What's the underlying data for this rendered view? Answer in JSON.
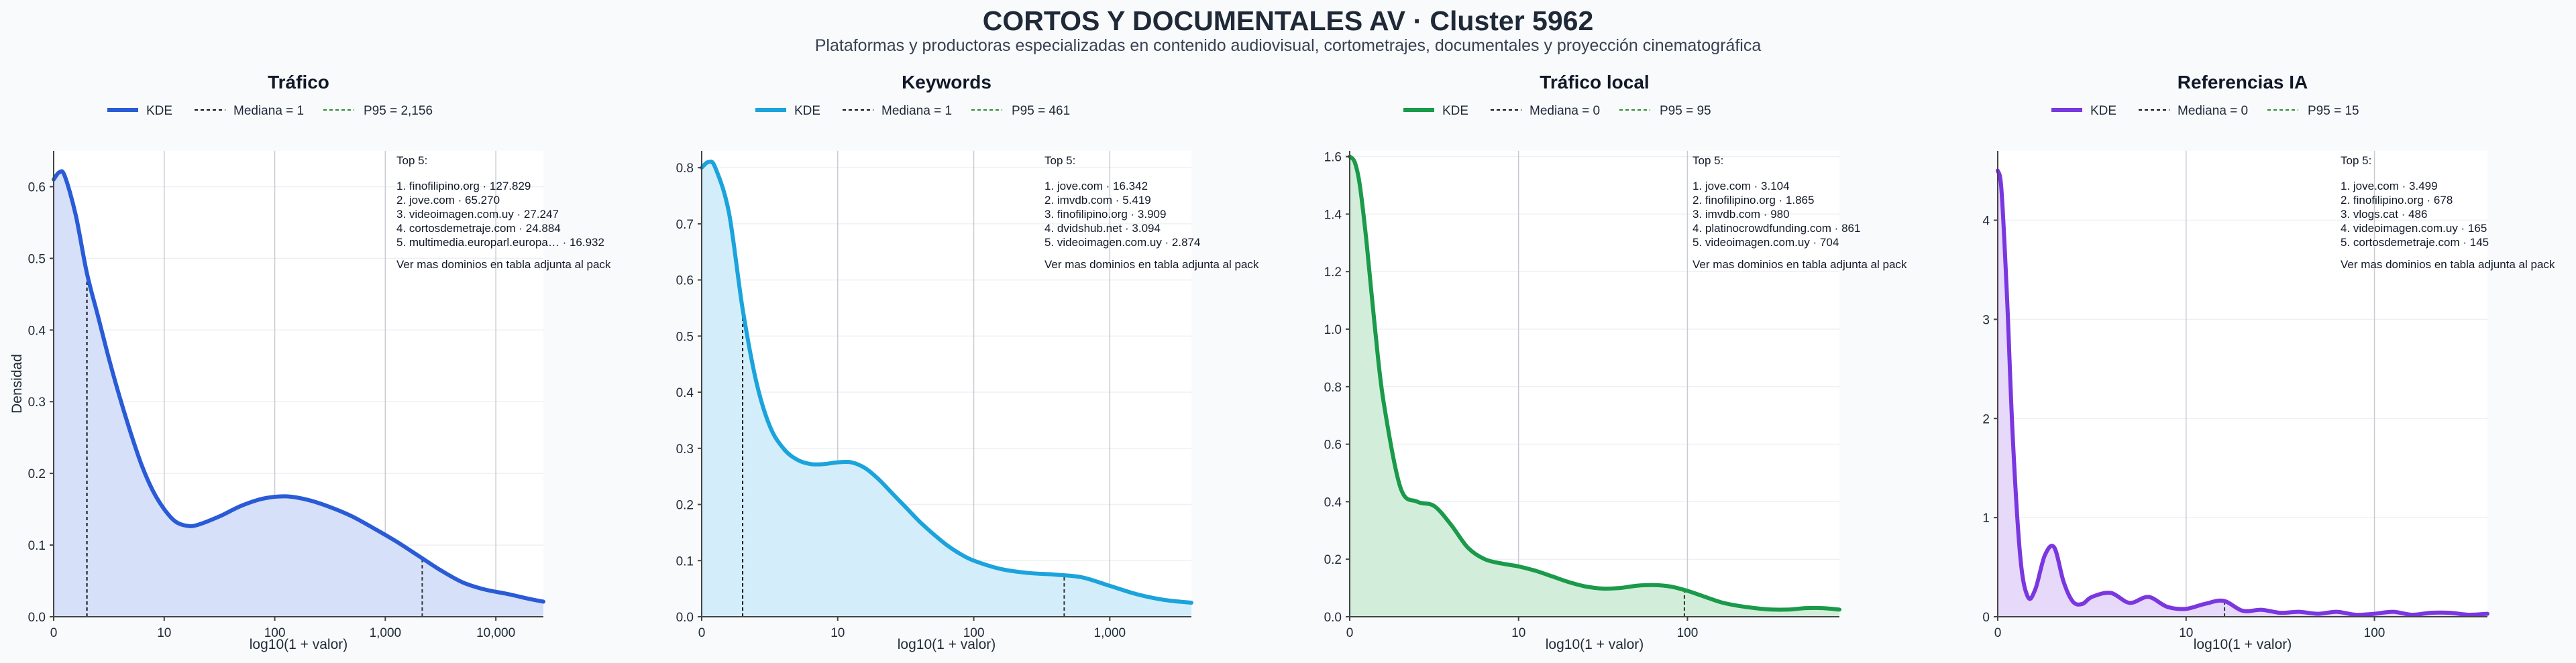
{
  "title": "CORTOS Y DOCUMENTALES AV · Cluster 5962",
  "subtitle": "Plataformas y productoras especializadas en contenido audiovisual, cortometrajes, documentales y proyección cinematográfica",
  "chart_data": [
    {
      "type": "area",
      "title": "Tráfico",
      "color": "#2a5bd7",
      "fill": "#d6e0f8",
      "xlabel": "log10(1 + valor)",
      "ylabel": "Densidad",
      "xscale": "log10(1+x)",
      "xlim": [
        0,
        4.43
      ],
      "ylim": [
        0,
        0.65
      ],
      "x_ticks": [
        {
          "v": 0,
          "label": "0"
        },
        {
          "v": 1,
          "label": "10"
        },
        {
          "v": 2,
          "label": "100"
        },
        {
          "v": 3,
          "label": "1,000"
        },
        {
          "v": 4,
          "label": "10,000"
        }
      ],
      "y_ticks": [
        {
          "v": 0,
          "label": "0.0"
        },
        {
          "v": 0.1,
          "label": "0.1"
        },
        {
          "v": 0.2,
          "label": "0.2"
        },
        {
          "v": 0.3,
          "label": "0.3"
        },
        {
          "v": 0.4,
          "label": "0.4"
        },
        {
          "v": 0.5,
          "label": "0.5"
        },
        {
          "v": 0.6,
          "label": "0.6"
        }
      ],
      "legend": {
        "kde": "KDE",
        "median": "Mediana = 1",
        "p95": "P95 = 2,156"
      },
      "median_x": 0.301,
      "p95_x": 3.334,
      "series": [
        {
          "name": "KDE",
          "x": [
            0,
            0.05,
            0.1,
            0.2,
            0.3,
            0.4,
            0.5,
            0.6,
            0.7,
            0.8,
            0.9,
            1.0,
            1.1,
            1.2,
            1.3,
            1.5,
            1.7,
            1.9,
            2.1,
            2.3,
            2.5,
            2.7,
            2.9,
            3.1,
            3.3,
            3.5,
            3.7,
            3.9,
            4.1,
            4.3,
            4.43
          ],
          "y": [
            0.61,
            0.62,
            0.615,
            0.56,
            0.48,
            0.42,
            0.36,
            0.305,
            0.255,
            0.21,
            0.175,
            0.15,
            0.133,
            0.127,
            0.128,
            0.14,
            0.155,
            0.165,
            0.168,
            0.163,
            0.153,
            0.14,
            0.123,
            0.105,
            0.085,
            0.065,
            0.048,
            0.038,
            0.032,
            0.025,
            0.021
          ]
        }
      ],
      "top5": [
        "Top 5:",
        "1. finofilipino.org · 127.829",
        "2. jove.com · 65.270",
        "3. videoimagen.com.uy · 27.247",
        "4. cortosdemetraje.com · 24.884",
        "5. multimedia.europarl.europa… · 16.932",
        "Ver mas dominios en tabla adjunta al pack"
      ]
    },
    {
      "type": "area",
      "title": "Keywords",
      "color": "#1ba3dc",
      "fill": "#d3eefa",
      "xlabel": "log10(1 + valor)",
      "xscale": "log10(1+x)",
      "xlim": [
        0,
        3.6
      ],
      "ylim": [
        0,
        0.83
      ],
      "x_ticks": [
        {
          "v": 0,
          "label": "0"
        },
        {
          "v": 1,
          "label": "10"
        },
        {
          "v": 2,
          "label": "100"
        },
        {
          "v": 3,
          "label": "1,000"
        }
      ],
      "y_ticks": [
        {
          "v": 0,
          "label": "0.0"
        },
        {
          "v": 0.1,
          "label": "0.1"
        },
        {
          "v": 0.2,
          "label": "0.2"
        },
        {
          "v": 0.3,
          "label": "0.3"
        },
        {
          "v": 0.4,
          "label": "0.4"
        },
        {
          "v": 0.5,
          "label": "0.5"
        },
        {
          "v": 0.6,
          "label": "0.6"
        },
        {
          "v": 0.7,
          "label": "0.7"
        },
        {
          "v": 0.8,
          "label": "0.8"
        }
      ],
      "legend": {
        "kde": "KDE",
        "median": "Mediana = 1",
        "p95": "P95 = 461"
      },
      "median_x": 0.301,
      "p95_x": 2.665,
      "series": [
        {
          "name": "KDE",
          "x": [
            0,
            0.05,
            0.1,
            0.2,
            0.3,
            0.4,
            0.5,
            0.6,
            0.7,
            0.8,
            0.9,
            1.0,
            1.1,
            1.2,
            1.3,
            1.4,
            1.5,
            1.6,
            1.7,
            1.8,
            1.9,
            2.0,
            2.2,
            2.4,
            2.6,
            2.8,
            3.0,
            3.2,
            3.4,
            3.6
          ],
          "y": [
            0.8,
            0.81,
            0.8,
            0.72,
            0.55,
            0.42,
            0.34,
            0.3,
            0.28,
            0.272,
            0.272,
            0.275,
            0.275,
            0.265,
            0.245,
            0.22,
            0.195,
            0.17,
            0.148,
            0.128,
            0.112,
            0.1,
            0.085,
            0.078,
            0.075,
            0.07,
            0.055,
            0.04,
            0.03,
            0.025
          ]
        }
      ],
      "top5": [
        "Top 5:",
        "1. jove.com · 16.342",
        "2. imvdb.com · 5.419",
        "3. finofilipino.org · 3.909",
        "4. dvidshub.net · 3.094",
        "5. videoimagen.com.uy · 2.874",
        "Ver mas dominios en tabla adjunta al pack"
      ]
    },
    {
      "type": "area",
      "title": "Tráfico local",
      "color": "#1a9a4a",
      "fill": "#d2eedb",
      "xlabel": "log10(1 + valor)",
      "xscale": "log10(1+x)",
      "xlim": [
        0,
        2.9
      ],
      "ylim": [
        0,
        1.62
      ],
      "x_ticks": [
        {
          "v": 0,
          "label": "0"
        },
        {
          "v": 1,
          "label": "10"
        },
        {
          "v": 2,
          "label": "100"
        },
        {
          "v": 3,
          "label": "1,000"
        }
      ],
      "y_ticks": [
        {
          "v": 0,
          "label": "0.0"
        },
        {
          "v": 0.2,
          "label": "0.2"
        },
        {
          "v": 0.4,
          "label": "0.4"
        },
        {
          "v": 0.6,
          "label": "0.6"
        },
        {
          "v": 0.8,
          "label": "0.8"
        },
        {
          "v": 1.0,
          "label": "1.0"
        },
        {
          "v": 1.2,
          "label": "1.2"
        },
        {
          "v": 1.4,
          "label": "1.4"
        },
        {
          "v": 1.6,
          "label": "1.6"
        }
      ],
      "legend": {
        "kde": "KDE",
        "median": "Mediana = 0",
        "p95": "P95 = 95"
      },
      "median_x": 0,
      "p95_x": 1.982,
      "series": [
        {
          "name": "KDE",
          "x": [
            0,
            0.03,
            0.06,
            0.1,
            0.15,
            0.2,
            0.3,
            0.4,
            0.5,
            0.6,
            0.7,
            0.8,
            0.9,
            1.0,
            1.1,
            1.2,
            1.3,
            1.4,
            1.5,
            1.6,
            1.7,
            1.8,
            1.9,
            2.0,
            2.1,
            2.2,
            2.3,
            2.4,
            2.5,
            2.6,
            2.7,
            2.8,
            2.9
          ],
          "y": [
            1.6,
            1.58,
            1.5,
            1.3,
            1.0,
            0.75,
            0.45,
            0.4,
            0.385,
            0.32,
            0.24,
            0.2,
            0.185,
            0.175,
            0.16,
            0.14,
            0.12,
            0.105,
            0.098,
            0.1,
            0.108,
            0.11,
            0.105,
            0.09,
            0.07,
            0.05,
            0.038,
            0.03,
            0.025,
            0.025,
            0.03,
            0.03,
            0.025
          ]
        }
      ],
      "top5": [
        "Top 5:",
        "1. jove.com · 3.104",
        "2. finofilipino.org · 1.865",
        "3. imvdb.com · 980",
        "4. platinocrowdfunding.com · 861",
        "5. videoimagen.com.uy · 704",
        "Ver mas dominios en tabla adjunta al pack"
      ]
    },
    {
      "type": "area",
      "title": "Referencias IA",
      "color": "#7a37e0",
      "fill": "#e6d9fa",
      "xlabel": "log10(1 + valor)",
      "xscale": "log10(1+x)",
      "xlim": [
        0,
        2.6
      ],
      "ylim": [
        0,
        4.7
      ],
      "x_ticks": [
        {
          "v": 0,
          "label": "0"
        },
        {
          "v": 1,
          "label": "10"
        },
        {
          "v": 2,
          "label": "100"
        }
      ],
      "y_ticks": [
        {
          "v": 0,
          "label": "0"
        },
        {
          "v": 1,
          "label": "1"
        },
        {
          "v": 2,
          "label": "2"
        },
        {
          "v": 3,
          "label": "3"
        },
        {
          "v": 4,
          "label": "4"
        }
      ],
      "legend": {
        "kde": "KDE",
        "median": "Mediana = 0",
        "p95": "P95 = 15"
      },
      "median_x": 0,
      "p95_x": 1.204,
      "series": [
        {
          "name": "KDE",
          "x": [
            0,
            0.02,
            0.05,
            0.08,
            0.12,
            0.16,
            0.2,
            0.25,
            0.3,
            0.35,
            0.4,
            0.45,
            0.5,
            0.6,
            0.7,
            0.8,
            0.9,
            1.0,
            1.1,
            1.2,
            1.3,
            1.4,
            1.5,
            1.6,
            1.7,
            1.8,
            1.9,
            2.0,
            2.1,
            2.2,
            2.3,
            2.4,
            2.5,
            2.6
          ],
          "y": [
            4.5,
            4.3,
            3.2,
            1.8,
            0.6,
            0.2,
            0.28,
            0.62,
            0.7,
            0.35,
            0.15,
            0.13,
            0.2,
            0.24,
            0.14,
            0.2,
            0.1,
            0.08,
            0.13,
            0.16,
            0.06,
            0.07,
            0.04,
            0.05,
            0.03,
            0.05,
            0.02,
            0.03,
            0.05,
            0.02,
            0.04,
            0.04,
            0.02,
            0.03
          ]
        }
      ],
      "top5": [
        "Top 5:",
        "1. jove.com · 3.499",
        "2. finofilipino.org · 678",
        "3. vlogs.cat · 486",
        "4. videoimagen.com.uy · 165",
        "5. cortosdemetraje.com · 145",
        "Ver mas dominios en tabla adjunta al pack"
      ]
    }
  ]
}
